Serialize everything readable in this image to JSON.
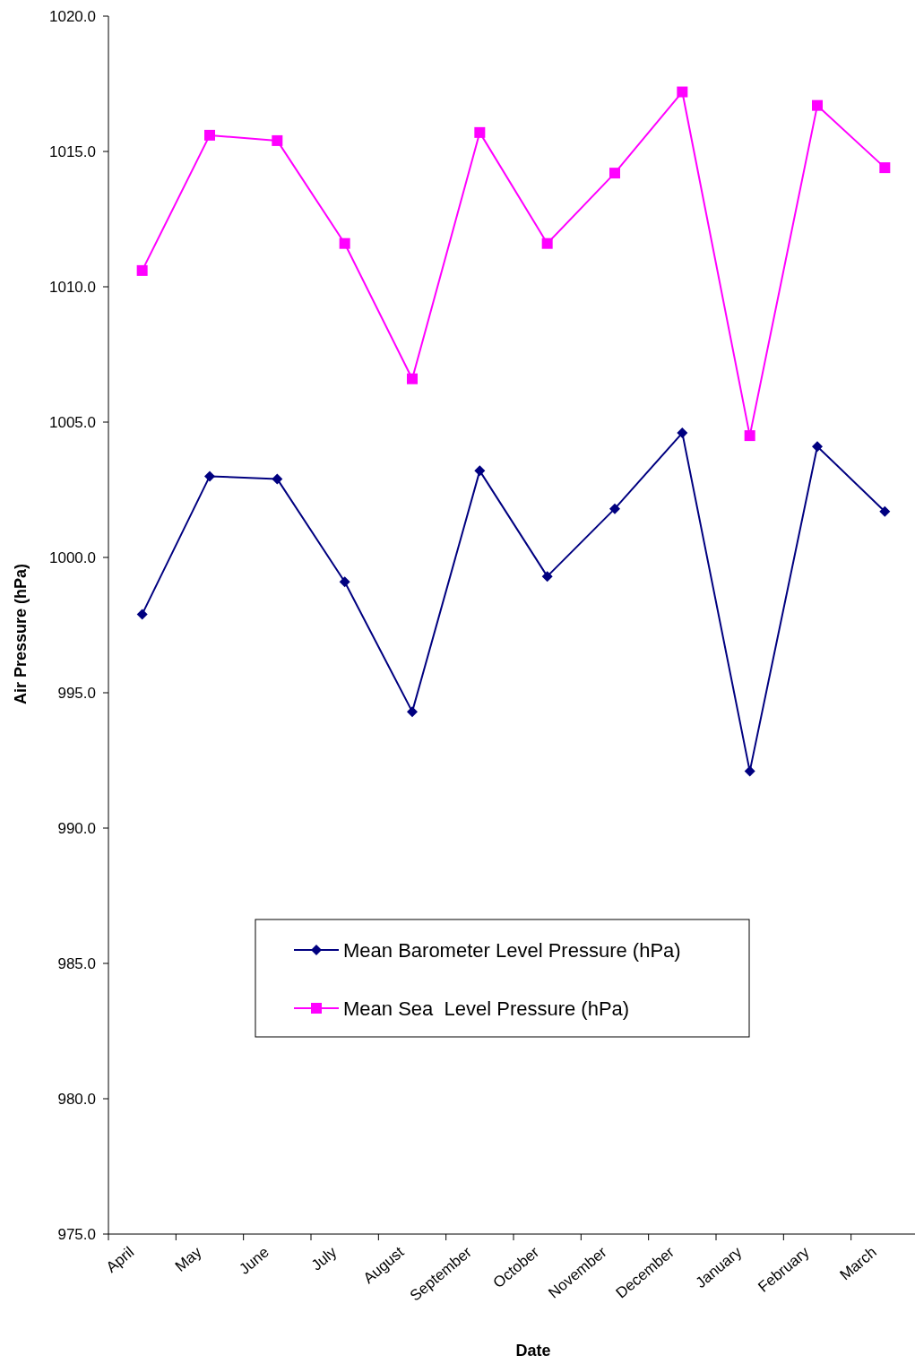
{
  "chart_data": {
    "type": "line",
    "xlabel": "Date",
    "ylabel": "Air Pressure (hPa)",
    "categories": [
      "April",
      "May",
      "June",
      "July",
      "August",
      "September",
      "October",
      "November",
      "December",
      "January",
      "February",
      "March"
    ],
    "series": [
      {
        "name": "Mean Barometer Level Pressure (hPa)",
        "color": "#000080",
        "marker": "diamond",
        "values": [
          997.9,
          1003.0,
          1002.9,
          999.1,
          994.3,
          1003.2,
          999.3,
          1001.8,
          1004.6,
          992.1,
          1004.1,
          1001.7
        ]
      },
      {
        "name": "Mean Sea  Level Pressure (hPa)",
        "color": "#ff00ff",
        "marker": "square",
        "values": [
          1010.6,
          1015.6,
          1015.4,
          1011.6,
          1006.6,
          1015.7,
          1011.6,
          1014.2,
          1017.2,
          1004.5,
          1016.7,
          1014.4
        ]
      }
    ],
    "ylim": [
      975,
      1020
    ],
    "yticks": [
      {
        "value": 975,
        "label": "975.0"
      },
      {
        "value": 980,
        "label": "980.0"
      },
      {
        "value": 985,
        "label": "985.0"
      },
      {
        "value": 990,
        "label": "990.0"
      },
      {
        "value": 995,
        "label": "995.0"
      },
      {
        "value": 1000,
        "label": "1000.0"
      },
      {
        "value": 1005,
        "label": "1005.0"
      },
      {
        "value": 1010,
        "label": "1010.0"
      },
      {
        "value": 1015,
        "label": "1015.0"
      },
      {
        "value": 1020,
        "label": "1020.0"
      }
    ],
    "legend": "bottom",
    "grid": false,
    "line_style": "solid"
  }
}
